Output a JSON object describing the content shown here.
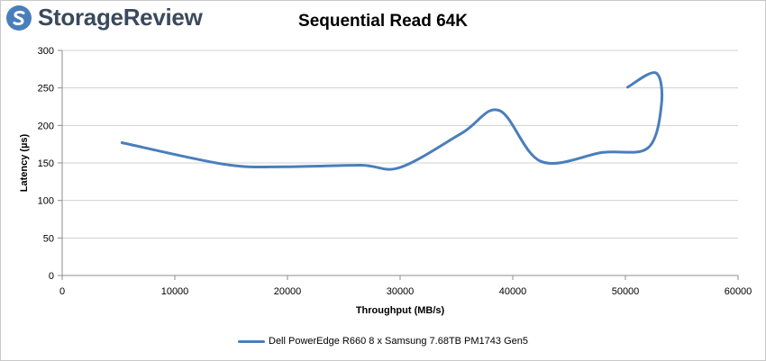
{
  "brand": {
    "name": "StorageReview",
    "logo_icon": "storagereview-logo-icon",
    "logo_color": "#4a7ebb"
  },
  "chart_data": {
    "type": "line",
    "title": "Sequential Read 64K",
    "xlabel": "Throughput (MB/s)",
    "ylabel": "Latency (µs)",
    "xlim": [
      0,
      60000
    ],
    "ylim": [
      0,
      300
    ],
    "xticks": [
      0,
      10000,
      20000,
      30000,
      40000,
      50000,
      60000
    ],
    "yticks": [
      0,
      50,
      100,
      150,
      200,
      250,
      300
    ],
    "grid": "horizontal",
    "legend_position": "bottom",
    "series": [
      {
        "name": "Dell PowerEdge R660 8 x Samsung 7.68TB PM1743 Gen5",
        "color": "#4a7ebb",
        "points": [
          {
            "x": 5300,
            "y": 177
          },
          {
            "x": 14500,
            "y": 148
          },
          {
            "x": 20000,
            "y": 145
          },
          {
            "x": 26500,
            "y": 147
          },
          {
            "x": 30000,
            "y": 144
          },
          {
            "x": 35500,
            "y": 190
          },
          {
            "x": 38800,
            "y": 220
          },
          {
            "x": 42500,
            "y": 152
          },
          {
            "x": 48000,
            "y": 164
          },
          {
            "x": 52000,
            "y": 170
          },
          {
            "x": 53200,
            "y": 228
          },
          {
            "x": 52700,
            "y": 270
          },
          {
            "x": 50200,
            "y": 251
          }
        ]
      }
    ]
  }
}
